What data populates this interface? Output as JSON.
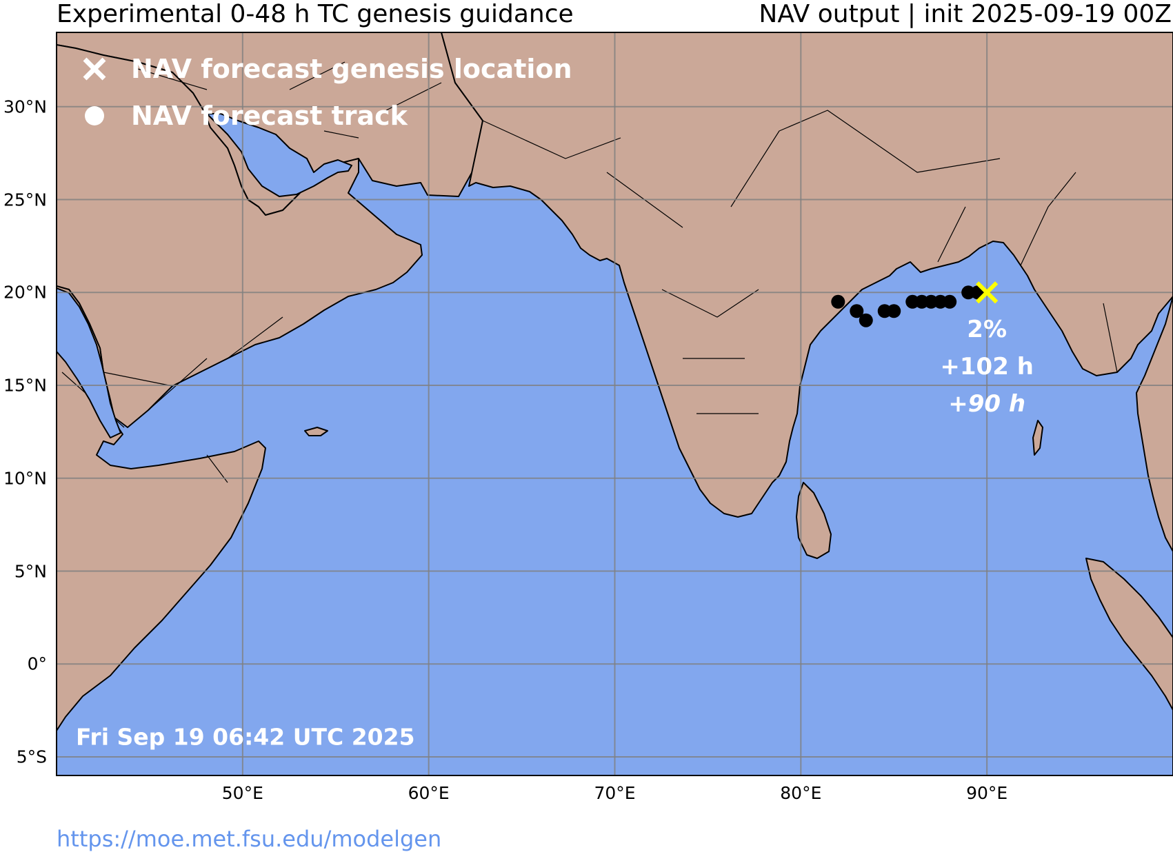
{
  "header": {
    "title_left": "Experimental 0-48 h TC genesis guidance",
    "title_right": "NAV output | init 2025-09-19 00Z"
  },
  "legend": {
    "genesis_label": "NAV forecast genesis location",
    "track_label": "NAV forecast track"
  },
  "timestamp": "Fri Sep 19 06:42 UTC 2025",
  "footer_url": "https://moe.met.fsu.edu/modelgen",
  "axes": {
    "lon_range": [
      40,
      100
    ],
    "lat_range": [
      -6,
      34
    ],
    "lat_ticks": [
      {
        "value": 30,
        "label": "30°N"
      },
      {
        "value": 25,
        "label": "25°N"
      },
      {
        "value": 20,
        "label": "20°N"
      },
      {
        "value": 15,
        "label": "15°N"
      },
      {
        "value": 10,
        "label": "10°N"
      },
      {
        "value": 5,
        "label": "5°N"
      },
      {
        "value": 0,
        "label": "0°"
      },
      {
        "value": -5,
        "label": "5°S"
      }
    ],
    "lon_ticks": [
      {
        "value": 50,
        "label": "50°E"
      },
      {
        "value": 60,
        "label": "60°E"
      },
      {
        "value": 70,
        "label": "70°E"
      },
      {
        "value": 80,
        "label": "80°E"
      },
      {
        "value": 90,
        "label": "90°E"
      }
    ]
  },
  "colors": {
    "ocean": "#82a7ee",
    "land": "#cba898",
    "track": "#000000",
    "genesis_marker": "#ffff00",
    "legend_marker": "#ffffff",
    "grid": "#808080",
    "url": "#6495ed"
  },
  "track_points": [
    {
      "lon": 82.0,
      "lat": 19.5
    },
    {
      "lon": 83.0,
      "lat": 19.0
    },
    {
      "lon": 83.5,
      "lat": 18.5
    },
    {
      "lon": 84.5,
      "lat": 19.0
    },
    {
      "lon": 85.0,
      "lat": 19.0
    },
    {
      "lon": 86.0,
      "lat": 19.5
    },
    {
      "lon": 86.5,
      "lat": 19.5
    },
    {
      "lon": 87.0,
      "lat": 19.5
    },
    {
      "lon": 87.5,
      "lat": 19.5
    },
    {
      "lon": 88.0,
      "lat": 19.5
    },
    {
      "lon": 89.0,
      "lat": 20.0
    },
    {
      "lon": 89.5,
      "lat": 20.0
    }
  ],
  "genesis": {
    "lon": 90.0,
    "lat": 20.0,
    "probability": "2%",
    "lead_a": "+102 h",
    "lead_b": "+90 h"
  }
}
